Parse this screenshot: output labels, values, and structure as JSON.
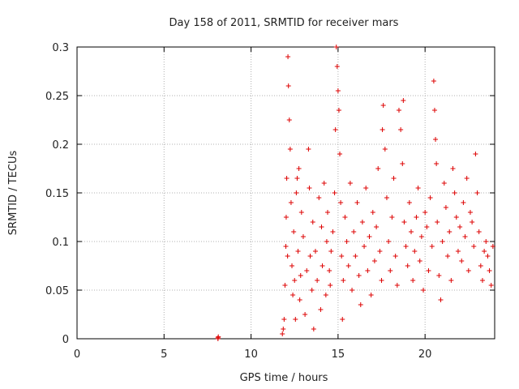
{
  "chart_data": {
    "type": "scatter",
    "title": "Day 158 of 2011, SRMTID for receiver mars",
    "xlabel": "GPS time / hours",
    "ylabel": "SRMTID / TECUs",
    "xlim": [
      0,
      24
    ],
    "ylim": [
      0,
      0.3
    ],
    "xticks": [
      0,
      5,
      10,
      15,
      20
    ],
    "yticks": [
      0,
      0.05,
      0.1,
      0.15,
      0.2,
      0.25,
      0.3
    ],
    "xtick_labels": [
      "0",
      "5",
      "10",
      "15",
      "20"
    ],
    "ytick_labels": [
      "0",
      "0.05",
      "0.1",
      "0.15",
      "0.2",
      "0.25",
      "0.3"
    ],
    "grid": true,
    "marker": "+",
    "color": "#dd0000",
    "series": [
      {
        "name": "SRMTID",
        "points": [
          [
            8.1,
            0.0
          ],
          [
            8.1,
            0.001
          ],
          [
            8.12,
            0.002
          ],
          [
            11.8,
            0.005
          ],
          [
            11.85,
            0.01
          ],
          [
            11.9,
            0.02
          ],
          [
            11.95,
            0.055
          ],
          [
            12.0,
            0.095
          ],
          [
            12.02,
            0.125
          ],
          [
            12.05,
            0.165
          ],
          [
            12.1,
            0.085
          ],
          [
            12.12,
            0.29
          ],
          [
            12.15,
            0.26
          ],
          [
            12.2,
            0.225
          ],
          [
            12.25,
            0.195
          ],
          [
            12.3,
            0.14
          ],
          [
            12.35,
            0.075
          ],
          [
            12.4,
            0.045
          ],
          [
            12.45,
            0.11
          ],
          [
            12.5,
            0.06
          ],
          [
            12.55,
            0.02
          ],
          [
            12.6,
            0.15
          ],
          [
            12.65,
            0.165
          ],
          [
            12.7,
            0.09
          ],
          [
            12.75,
            0.175
          ],
          [
            12.8,
            0.04
          ],
          [
            12.85,
            0.065
          ],
          [
            12.9,
            0.13
          ],
          [
            13.0,
            0.105
          ],
          [
            13.1,
            0.025
          ],
          [
            13.2,
            0.07
          ],
          [
            13.3,
            0.195
          ],
          [
            13.35,
            0.155
          ],
          [
            13.4,
            0.085
          ],
          [
            13.5,
            0.05
          ],
          [
            13.55,
            0.12
          ],
          [
            13.6,
            0.01
          ],
          [
            13.7,
            0.09
          ],
          [
            13.8,
            0.06
          ],
          [
            13.9,
            0.145
          ],
          [
            14.0,
            0.03
          ],
          [
            14.05,
            0.115
          ],
          [
            14.1,
            0.075
          ],
          [
            14.2,
            0.16
          ],
          [
            14.3,
            0.045
          ],
          [
            14.35,
            0.1
          ],
          [
            14.4,
            0.13
          ],
          [
            14.5,
            0.07
          ],
          [
            14.55,
            0.055
          ],
          [
            14.6,
            0.09
          ],
          [
            14.7,
            0.11
          ],
          [
            14.8,
            0.15
          ],
          [
            14.85,
            0.215
          ],
          [
            14.9,
            0.3
          ],
          [
            14.95,
            0.28
          ],
          [
            15.0,
            0.255
          ],
          [
            15.05,
            0.235
          ],
          [
            15.1,
            0.19
          ],
          [
            15.15,
            0.14
          ],
          [
            15.2,
            0.085
          ],
          [
            15.25,
            0.02
          ],
          [
            15.3,
            0.06
          ],
          [
            15.4,
            0.125
          ],
          [
            15.5,
            0.1
          ],
          [
            15.6,
            0.075
          ],
          [
            15.7,
            0.16
          ],
          [
            15.8,
            0.05
          ],
          [
            15.9,
            0.11
          ],
          [
            16.0,
            0.085
          ],
          [
            16.1,
            0.14
          ],
          [
            16.2,
            0.065
          ],
          [
            16.3,
            0.035
          ],
          [
            16.4,
            0.12
          ],
          [
            16.5,
            0.095
          ],
          [
            16.6,
            0.155
          ],
          [
            16.7,
            0.07
          ],
          [
            16.8,
            0.105
          ],
          [
            16.9,
            0.045
          ],
          [
            17.0,
            0.13
          ],
          [
            17.1,
            0.08
          ],
          [
            17.2,
            0.115
          ],
          [
            17.3,
            0.175
          ],
          [
            17.4,
            0.09
          ],
          [
            17.5,
            0.06
          ],
          [
            17.55,
            0.215
          ],
          [
            17.6,
            0.24
          ],
          [
            17.7,
            0.195
          ],
          [
            17.8,
            0.145
          ],
          [
            17.9,
            0.1
          ],
          [
            18.0,
            0.07
          ],
          [
            18.1,
            0.125
          ],
          [
            18.2,
            0.165
          ],
          [
            18.3,
            0.085
          ],
          [
            18.4,
            0.055
          ],
          [
            18.5,
            0.235
          ],
          [
            18.6,
            0.215
          ],
          [
            18.7,
            0.18
          ],
          [
            18.75,
            0.245
          ],
          [
            18.8,
            0.12
          ],
          [
            18.9,
            0.095
          ],
          [
            19.0,
            0.075
          ],
          [
            19.1,
            0.14
          ],
          [
            19.2,
            0.11
          ],
          [
            19.3,
            0.06
          ],
          [
            19.4,
            0.09
          ],
          [
            19.5,
            0.125
          ],
          [
            19.6,
            0.155
          ],
          [
            19.7,
            0.08
          ],
          [
            19.8,
            0.105
          ],
          [
            19.9,
            0.05
          ],
          [
            20.0,
            0.13
          ],
          [
            20.1,
            0.115
          ],
          [
            20.2,
            0.07
          ],
          [
            20.3,
            0.145
          ],
          [
            20.4,
            0.095
          ],
          [
            20.5,
            0.265
          ],
          [
            20.55,
            0.235
          ],
          [
            20.6,
            0.205
          ],
          [
            20.65,
            0.18
          ],
          [
            20.7,
            0.12
          ],
          [
            20.8,
            0.065
          ],
          [
            20.9,
            0.04
          ],
          [
            21.0,
            0.1
          ],
          [
            21.1,
            0.16
          ],
          [
            21.2,
            0.135
          ],
          [
            21.3,
            0.085
          ],
          [
            21.4,
            0.11
          ],
          [
            21.5,
            0.06
          ],
          [
            21.6,
            0.175
          ],
          [
            21.7,
            0.15
          ],
          [
            21.8,
            0.125
          ],
          [
            21.9,
            0.09
          ],
          [
            22.0,
            0.115
          ],
          [
            22.1,
            0.08
          ],
          [
            22.2,
            0.14
          ],
          [
            22.3,
            0.105
          ],
          [
            22.4,
            0.165
          ],
          [
            22.5,
            0.07
          ],
          [
            22.6,
            0.13
          ],
          [
            22.7,
            0.12
          ],
          [
            22.8,
            0.095
          ],
          [
            22.9,
            0.19
          ],
          [
            23.0,
            0.15
          ],
          [
            23.1,
            0.11
          ],
          [
            23.2,
            0.075
          ],
          [
            23.3,
            0.06
          ],
          [
            23.4,
            0.09
          ],
          [
            23.5,
            0.1
          ],
          [
            23.6,
            0.085
          ],
          [
            23.7,
            0.07
          ],
          [
            23.8,
            0.055
          ],
          [
            23.9,
            0.095
          ]
        ]
      }
    ]
  }
}
